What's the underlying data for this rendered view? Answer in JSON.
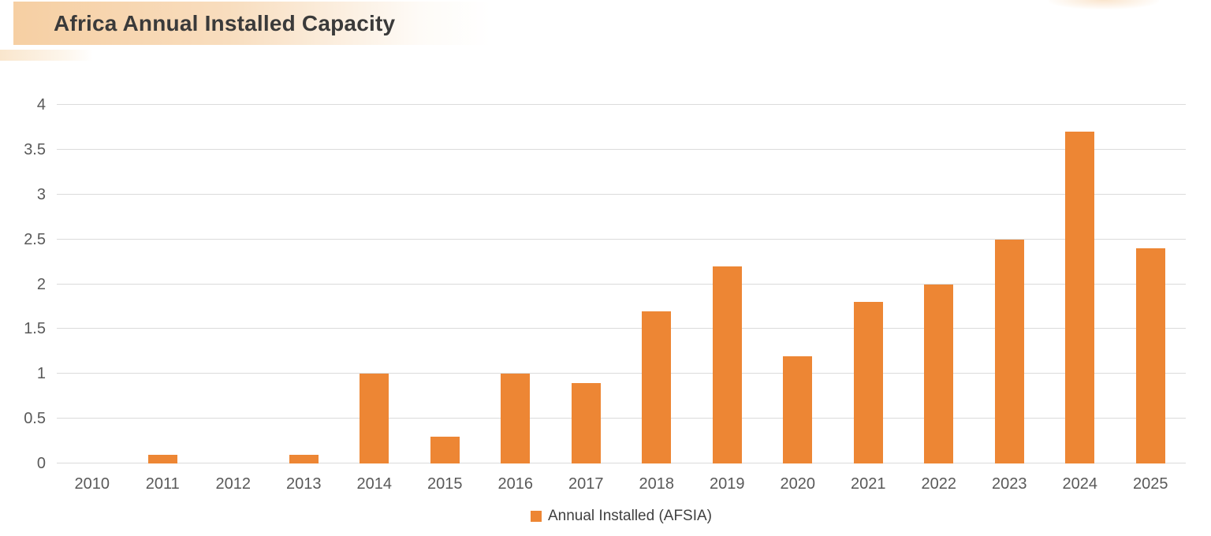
{
  "header": {
    "title": "Africa Annual Installed Capacity"
  },
  "legend": {
    "label": "Annual Installed (AFSIA)"
  },
  "colors": {
    "bar": "#ED8634",
    "gridline": "#DBDBDB",
    "axis_text": "#595959",
    "title_text": "#3A3A3A",
    "header_gradient_start": "#F6CFA3"
  },
  "chart_data": {
    "type": "bar",
    "title": "Africa Annual Installed Capacity",
    "categories": [
      "2010",
      "2011",
      "2012",
      "2013",
      "2014",
      "2015",
      "2016",
      "2017",
      "2018",
      "2019",
      "2020",
      "2021",
      "2022",
      "2023",
      "2024",
      "2025"
    ],
    "values": [
      0,
      0.1,
      0,
      0.1,
      1,
      0.3,
      1,
      0.9,
      1.7,
      2.2,
      1.2,
      1.8,
      2,
      2.5,
      3.7,
      2.4
    ],
    "series_name": "Annual Installed (AFSIA)",
    "xlabel": "",
    "ylabel": "",
    "ylim": [
      0,
      4
    ],
    "yticks": [
      0,
      0.5,
      1,
      1.5,
      2,
      2.5,
      3,
      3.5,
      4
    ],
    "grid": true,
    "legend_position": "bottom",
    "bar_color": "#ED8634"
  }
}
